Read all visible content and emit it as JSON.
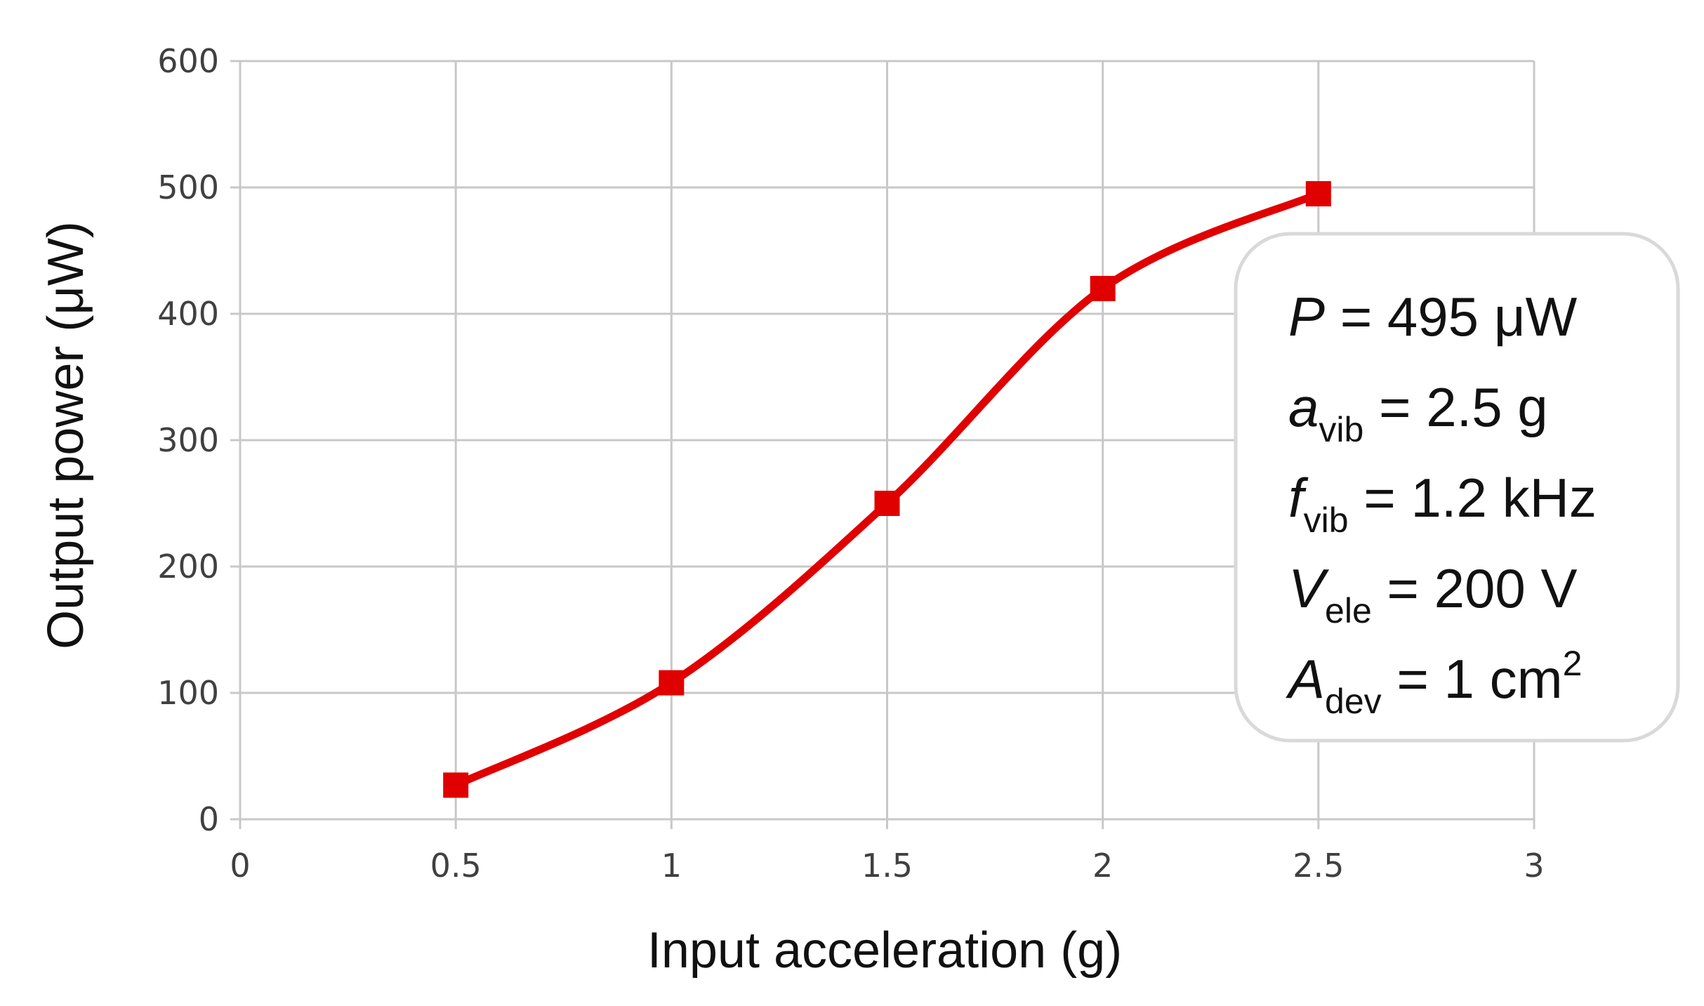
{
  "chart_data": {
    "type": "line",
    "title": "",
    "xlabel": "Input acceleration (g)",
    "ylabel": "Output power (μW)",
    "xlim": [
      0,
      3
    ],
    "ylim": [
      0,
      600
    ],
    "x_ticks": [
      "0",
      "0.5",
      "1",
      "1.5",
      "2",
      "2.5",
      "3"
    ],
    "y_ticks": [
      "0",
      "100",
      "200",
      "300",
      "400",
      "500",
      "600"
    ],
    "grid": true,
    "series": [
      {
        "x": [
          0.5,
          1,
          1.5,
          2,
          2.5
        ],
        "values": [
          27,
          108,
          250,
          420,
          495
        ],
        "color": "#e00000",
        "marker": "square",
        "smooth": true
      }
    ],
    "annotation_box": {
      "placement": "right",
      "lines": [
        {
          "sym": "P",
          "sub": "",
          "sup": "",
          "rest": " = 495 μW"
        },
        {
          "sym": "a",
          "sub": "vib",
          "sup": "",
          "rest": " = 2.5 g"
        },
        {
          "sym": "f",
          "sub": "vib",
          "sup": "",
          "rest": " = 1.2 kHz"
        },
        {
          "sym": "V",
          "sub": "ele",
          "sup": "",
          "rest": " = 200 V"
        },
        {
          "sym": "A",
          "sub": "dev",
          "sup": "2",
          "rest": " = 1 cm"
        }
      ]
    }
  },
  "colors": {
    "series": "#e00000",
    "grid": "#c8c8c8",
    "box_border": "#d9d9d9"
  }
}
